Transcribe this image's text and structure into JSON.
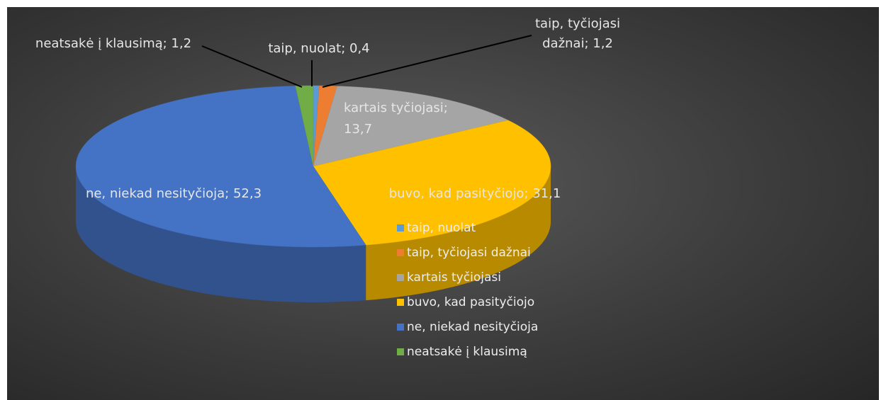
{
  "chart_data": {
    "type": "pie3d",
    "categories": [
      "taip, nuolat",
      "taip, tyčiojasi dažnai",
      "kartais tyčiojasi",
      "buvo, kad pasityčiojo",
      "ne, niekad nesityčioja",
      "neatsakė į klausimą"
    ],
    "values": [
      0.4,
      1.2,
      13.7,
      31.1,
      52.3,
      1.2
    ],
    "value_labels": [
      "taip, nuolat; 0,4",
      "taip, tyčiojasi dažnai; 1,2",
      "kartais tyčiojasi; 13,7",
      "buvo, kad pasityčiojo; 31,1",
      "ne, niekad nesityčioja; 52,3",
      "neatsakė į klausimą; 1,2"
    ],
    "colors": [
      "#5b9bd5",
      "#ed7d31",
      "#a5a5a5",
      "#ffc000",
      "#4472c4",
      "#70ad47"
    ],
    "legend": "right"
  }
}
